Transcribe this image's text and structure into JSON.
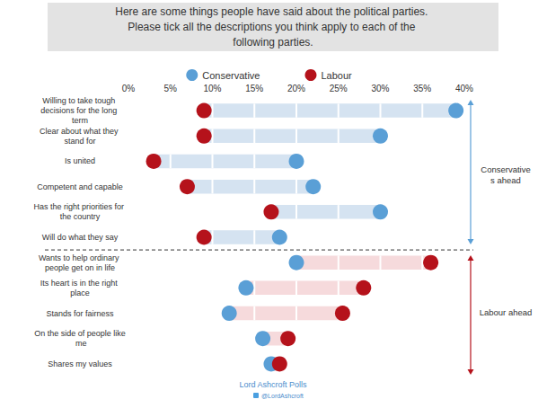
{
  "chart_data": {
    "type": "dumbbell",
    "orientation": "horizontal",
    "title": "Here are some things people have said about the political parties. Please tick all the descriptions you think apply to each of the following parties.",
    "categories": [
      "Willing to take tough decisions for the long term",
      "Clear about what they stand for",
      "Is united",
      "Competent and capable",
      "Has the right priorities for the country",
      "Will do what they say",
      "Wants to help ordinary people get on in life",
      "Its heart is in the right place",
      "Stands for fairness",
      "On the side of people like me",
      "Shares my values"
    ],
    "series": [
      {
        "name": "Conservative",
        "color": "#5a9fd6",
        "values": [
          39,
          30,
          20,
          22,
          30,
          18,
          20,
          14,
          12,
          16,
          17
        ]
      },
      {
        "name": "Labour",
        "color": "#b5121b",
        "values": [
          9,
          9,
          3,
          7,
          17,
          9,
          36,
          28,
          25.5,
          19,
          18
        ]
      }
    ],
    "xlim": [
      0,
      40
    ],
    "xticks": [
      {
        "value": 0,
        "label": "0%"
      },
      {
        "value": 5,
        "label": "5%"
      },
      {
        "value": 10,
        "label": "10%"
      },
      {
        "value": 15,
        "label": "15%"
      },
      {
        "value": 20,
        "label": "20%"
      },
      {
        "value": 25,
        "label": "25%"
      },
      {
        "value": 30,
        "label": "30%"
      },
      {
        "value": 35,
        "label": "35%"
      },
      {
        "value": 40,
        "label": "40%"
      }
    ],
    "legend": "top",
    "annotations": [
      "Conservatives ahead",
      "Labour ahead"
    ],
    "source": "Lord Ashcroft Polls",
    "source_handle": "@LordAshcroft"
  }
}
